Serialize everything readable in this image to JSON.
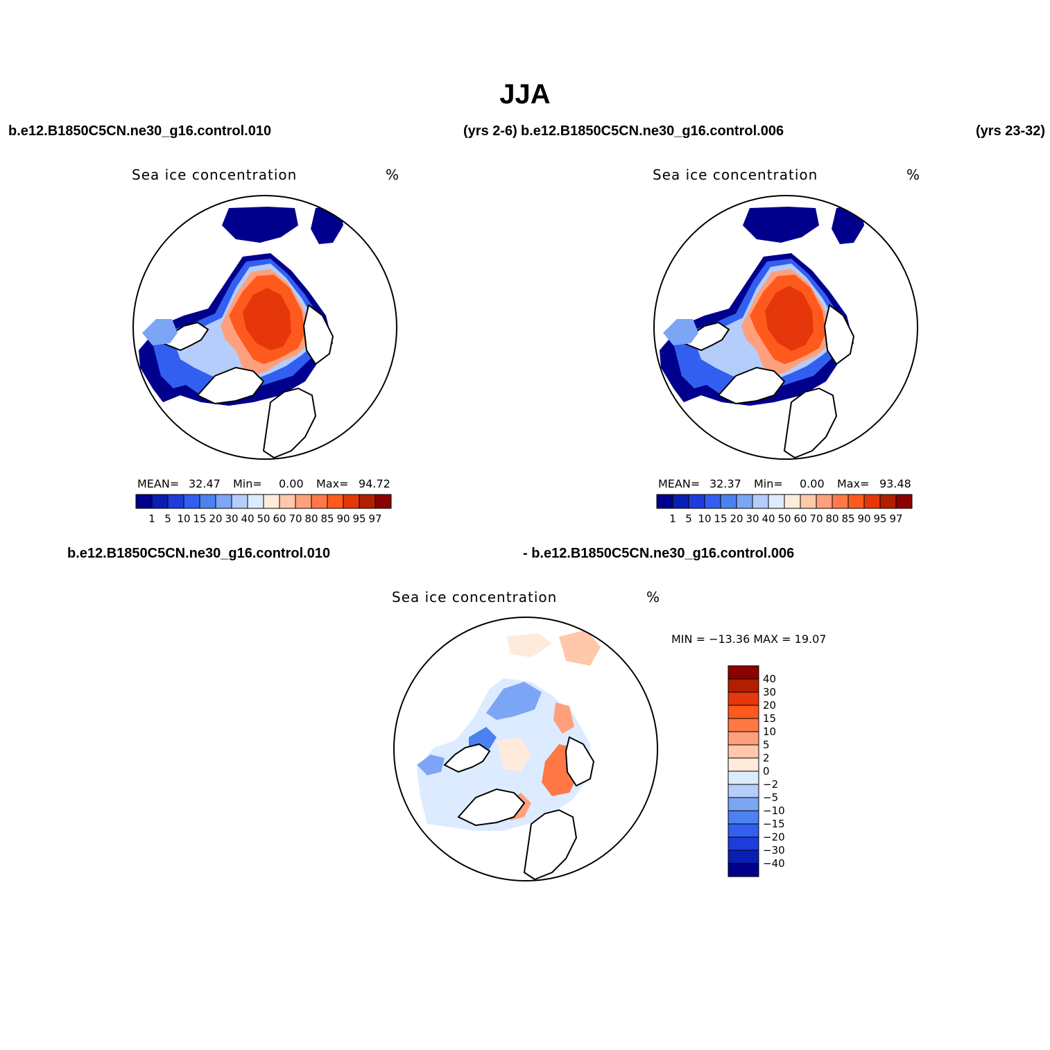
{
  "season": "JJA",
  "cases": {
    "case_a": "b.e12.B1850C5CN.ne30_g16.control.010",
    "years_a": "(yrs 2-6)",
    "case_b": "b.e12.B1850C5CN.ne30_g16.control.006",
    "years_b": "(yrs 23-32)"
  },
  "panels": [
    {
      "variable": "Sea ice concentration",
      "units": "%",
      "mean_label": "MEAN=",
      "mean": "32.47",
      "min_label": "Min=",
      "min": "0.00",
      "max_label": "Max=",
      "max": "94.72"
    },
    {
      "variable": "Sea ice concentration",
      "units": "%",
      "mean_label": "MEAN=",
      "mean": "32.37",
      "min_label": "Min=",
      "min": "0.00",
      "max_label": "Max=",
      "max": "93.48"
    }
  ],
  "diff": {
    "title_left": "b.e12.B1850C5CN.ne30_g16.control.010",
    "title_right": "- b.e12.B1850C5CN.ne30_g16.control.006",
    "variable": "Sea ice concentration",
    "units": "%",
    "minmax": "MIN = −13.36  MAX =   19.07"
  },
  "colorbar_abs": {
    "levels": [
      "1",
      "5",
      "10",
      "15",
      "20",
      "30",
      "40",
      "50",
      "60",
      "70",
      "80",
      "85",
      "90",
      "95",
      "97"
    ],
    "colors": [
      "#00008c",
      "#0a1eb4",
      "#1e3cdc",
      "#325ff0",
      "#4b82f0",
      "#7da5f5",
      "#b4cdfa",
      "#dcebff",
      "#ffebdc",
      "#ffc8aa",
      "#ffa07d",
      "#ff7846",
      "#ff5a1e",
      "#e6370a",
      "#b41e00",
      "#8c0000"
    ]
  },
  "colorbar_diff": {
    "levels": [
      "40",
      "30",
      "20",
      "15",
      "10",
      "5",
      "2",
      "0",
      "−2",
      "−5",
      "−10",
      "−15",
      "−20",
      "−30",
      "−40"
    ],
    "colors": [
      "#8c0000",
      "#b41e00",
      "#e6370a",
      "#ff5a1e",
      "#ff7846",
      "#ffa07d",
      "#ffc8aa",
      "#ffebdc",
      "#dcebff",
      "#b4cdfa",
      "#7da5f5",
      "#4b82f0",
      "#325ff0",
      "#1e3cdc",
      "#0a1eb4",
      "#00008c"
    ]
  }
}
